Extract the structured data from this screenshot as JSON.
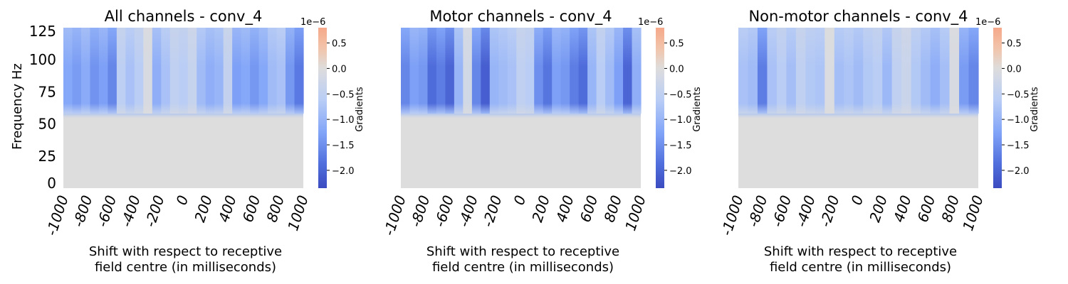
{
  "chart_data": [
    {
      "type": "heatmap",
      "title": "All channels - conv_4",
      "xlabel": [
        "Shift with respect to receptive",
        "field centre (in milliseconds)"
      ],
      "ylabel": "Frequency Hz",
      "x_tick_labels": [
        "-1000",
        "-800",
        "-600",
        "-400",
        "-200",
        "0",
        "200",
        "400",
        "600",
        "800",
        "1000"
      ],
      "y_tick_labels": [
        "0",
        "25",
        "50",
        "75",
        "100",
        "125"
      ],
      "x_range": [
        -1000,
        1000
      ],
      "y_range": [
        0,
        125
      ],
      "band_lower_hz": 58,
      "column_values": [
        -1.2,
        -1.35,
        -1.15,
        -1.45,
        -1.3,
        -1.6,
        -0.55,
        -0.8,
        -0.6,
        -0.1,
        -1.1,
        -0.8,
        -0.5,
        -0.6,
        -0.4,
        -0.9,
        -1.1,
        -1.0,
        -0.45,
        -1.3,
        -1.2,
        -1.4,
        -1.2,
        -0.9,
        -0.8,
        -1.4,
        -1.75
      ],
      "colorbar": {
        "label": "Gradients",
        "exponent": "1e−6",
        "ticks": [
          "0.5",
          "0.0",
          "−0.5",
          "−1.0",
          "−1.5",
          "−2.0"
        ],
        "tick_values": [
          0.5,
          0.0,
          -0.5,
          -1.0,
          -1.5,
          -2.0
        ],
        "vmin": -2.35,
        "vmax": 0.8
      },
      "show_ylabel": true
    },
    {
      "type": "heatmap",
      "title": "Motor channels - conv_4",
      "xlabel": [
        "Shift with respect to receptive",
        "field centre (in milliseconds)"
      ],
      "ylabel": "",
      "x_tick_labels": [
        "-1000",
        "-800",
        "-600",
        "-400",
        "-200",
        "0",
        "200",
        "400",
        "600",
        "800",
        "1000"
      ],
      "y_tick_labels": [],
      "x_range": [
        -1000,
        1000
      ],
      "y_range": [
        0,
        125
      ],
      "band_lower_hz": 58,
      "column_values": [
        -1.6,
        -1.3,
        -1.4,
        -1.9,
        -1.7,
        -2.0,
        -1.0,
        -0.2,
        -1.6,
        -2.1,
        -1.0,
        -0.9,
        -0.8,
        -0.5,
        -0.6,
        -1.5,
        -1.8,
        -1.3,
        -1.4,
        -1.7,
        -1.9,
        -1.0,
        -0.6,
        -0.9,
        -1.3,
        -2.0,
        -1.1
      ],
      "colorbar": {
        "label": "Gradients",
        "exponent": "1e−6",
        "ticks": [
          "0.5",
          "0.0",
          "−0.5",
          "−1.0",
          "−1.5",
          "−2.0"
        ],
        "tick_values": [
          0.5,
          0.0,
          -0.5,
          -1.0,
          -1.5,
          -2.0
        ],
        "vmin": -2.35,
        "vmax": 0.8
      },
      "show_ylabel": false
    },
    {
      "type": "heatmap",
      "title": "Non-motor channels - conv_4",
      "xlabel": [
        "Shift with respect to receptive",
        "field centre (in milliseconds)"
      ],
      "ylabel": "",
      "x_tick_labels": [
        "-1000",
        "-800",
        "-600",
        "-400",
        "-200",
        "0",
        "200",
        "400",
        "600",
        "800",
        "1000"
      ],
      "y_tick_labels": [],
      "x_range": [
        -1000,
        1000
      ],
      "y_range": [
        0,
        125
      ],
      "band_lower_hz": 58,
      "column_values": [
        -0.8,
        -0.9,
        -1.7,
        -0.8,
        -0.6,
        -0.85,
        -0.5,
        -0.7,
        -0.75,
        -0.05,
        -0.85,
        -0.75,
        -0.9,
        -0.7,
        -0.6,
        -0.95,
        -0.5,
        -0.35,
        -0.7,
        -0.9,
        -1.1,
        -0.85,
        -0.1,
        -1.35,
        -1.6
      ],
      "colorbar": {
        "label": "Gradients",
        "exponent": "1e−6",
        "ticks": [
          "0.5",
          "0.0",
          "−0.5",
          "−1.0",
          "−1.5",
          "−2.0"
        ],
        "tick_values": [
          0.5,
          0.0,
          -0.5,
          -1.0,
          -1.5,
          -2.0
        ],
        "vmin": -2.35,
        "vmax": 0.8
      },
      "show_ylabel": false
    }
  ]
}
